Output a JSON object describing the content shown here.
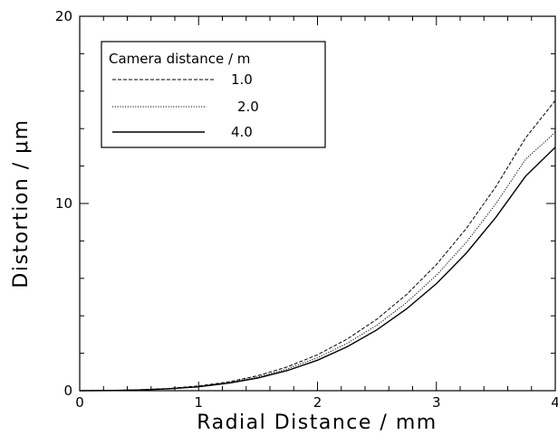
{
  "chart_data": {
    "type": "line",
    "title": "",
    "xlabel": "Radial Distance / mm",
    "ylabel": "Distortion / μm",
    "xlim": [
      0,
      4
    ],
    "ylim": [
      0,
      20
    ],
    "xticks": [
      "0",
      "1",
      "2",
      "3",
      "4"
    ],
    "yticks": [
      "0",
      "10",
      "20"
    ],
    "grid": false,
    "legend": {
      "title": "Camera distance / m",
      "placement": "top-left"
    },
    "x": [
      0,
      0.25,
      0.5,
      0.75,
      1.0,
      1.25,
      1.5,
      1.75,
      2.0,
      2.25,
      2.5,
      2.75,
      3.0,
      3.25,
      3.5,
      3.75,
      4.0
    ],
    "series": [
      {
        "name": "1.0",
        "style": "dashed",
        "values": [
          0,
          0.01,
          0.05,
          0.12,
          0.25,
          0.47,
          0.8,
          1.28,
          1.92,
          2.76,
          3.82,
          5.14,
          6.74,
          8.65,
          10.9,
          13.5,
          15.5
        ]
      },
      {
        "name": "2.0",
        "style": "dotted",
        "values": [
          0,
          0.01,
          0.04,
          0.11,
          0.23,
          0.43,
          0.73,
          1.17,
          1.76,
          2.53,
          3.5,
          4.71,
          6.17,
          7.92,
          9.98,
          12.36,
          13.8
        ]
      },
      {
        "name": "4.0",
        "style": "solid",
        "values": [
          0,
          0.01,
          0.04,
          0.1,
          0.21,
          0.4,
          0.68,
          1.08,
          1.63,
          2.35,
          3.25,
          4.37,
          5.72,
          7.34,
          9.26,
          11.46,
          13.0
        ]
      }
    ]
  }
}
